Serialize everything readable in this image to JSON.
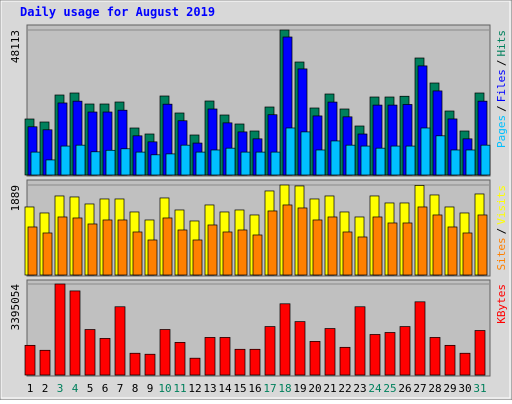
{
  "chart_data": [
    {
      "type": "bar",
      "title": "Daily usage for August 2019",
      "ylim": [
        0,
        48113
      ],
      "yticks": [
        48113
      ],
      "legend_separator": "/",
      "series": [
        {
          "name": "Pages",
          "color": "#00c0ff",
          "values": [
            7600,
            5000,
            9600,
            9900,
            7700,
            8200,
            8700,
            7600,
            6700,
            7000,
            9900,
            7600,
            8300,
            8900,
            7600,
            7600,
            7600,
            15600,
            14300,
            8300,
            11300,
            9900,
            9600,
            8900,
            9600,
            9600,
            15600,
            13000,
            8300,
            8300,
            9900
          ]
        },
        {
          "name": "Files",
          "color": "#0000ff",
          "values": [
            16000,
            15000,
            23900,
            24500,
            20900,
            20900,
            21500,
            13000,
            11000,
            23500,
            18000,
            10600,
            21900,
            17300,
            14300,
            12000,
            20000,
            45790,
            35200,
            19600,
            24200,
            19300,
            13600,
            23200,
            23200,
            23400,
            36200,
            27900,
            18600,
            12000,
            24500
          ]
        },
        {
          "name": "Hits",
          "color": "#00805c",
          "values": [
            18581,
            17585,
            26544,
            27208,
            23558,
            23558,
            24221,
            15595,
            13604,
            26212,
            20572,
            13272,
            24553,
            19908,
            16922,
            14599,
            22562,
            48113,
            37493,
            22231,
            26876,
            21899,
            16258,
            25880,
            25880,
            26134,
            38821,
            30526,
            21235,
            14599,
            27208
          ]
        }
      ]
    },
    {
      "type": "bar",
      "ylim": [
        0,
        1889
      ],
      "yticks": [
        1889
      ],
      "legend_separator": "/",
      "series": [
        {
          "name": "Sites",
          "color": "#ff8000",
          "values": [
            1008,
            882,
            1218,
            1197,
            1071,
            1155,
            1155,
            903,
            735,
            1197,
            945,
            735,
            1050,
            903,
            945,
            840,
            1344,
            1470,
            1407,
            1155,
            1218,
            903,
            798,
            1218,
            1092,
            1092,
            1428,
            1260,
            1008,
            882,
            1260
          ]
        },
        {
          "name": "Visits",
          "color": "#ffff00",
          "values": [
            1428,
            1302,
            1659,
            1638,
            1491,
            1596,
            1596,
            1323,
            1155,
            1617,
            1365,
            1134,
            1470,
            1323,
            1365,
            1260,
            1764,
            1889,
            1869,
            1596,
            1659,
            1323,
            1218,
            1659,
            1512,
            1512,
            1880,
            1680,
            1428,
            1302,
            1701
          ]
        }
      ]
    },
    {
      "type": "bar",
      "ylim": [
        0,
        3395054
      ],
      "yticks": [
        3395054
      ],
      "categories": [
        "1",
        "2",
        "3",
        "4",
        "5",
        "6",
        "7",
        "8",
        "9",
        "10",
        "11",
        "12",
        "13",
        "14",
        "15",
        "16",
        "17",
        "18",
        "19",
        "20",
        "21",
        "22",
        "23",
        "24",
        "25",
        "26",
        "27",
        "28",
        "29",
        "30",
        "31"
      ],
      "category_colors": [
        "#000000",
        "#000000",
        "#00805c",
        "#00805c",
        "#000000",
        "#000000",
        "#000000",
        "#000000",
        "#000000",
        "#00805c",
        "#00805c",
        "#000000",
        "#000000",
        "#000000",
        "#000000",
        "#000000",
        "#00805c",
        "#00805c",
        "#000000",
        "#000000",
        "#000000",
        "#000000",
        "#000000",
        "#00805c",
        "#00805c",
        "#000000",
        "#000000",
        "#000000",
        "#000000",
        "#000000",
        "#00805c"
      ],
      "series": [
        {
          "name": "KBytes",
          "color": "#ff0000",
          "values": [
            1107090,
            922575,
            3395054,
            3136755,
            1697538,
            1365411,
            2546307,
            811866,
            774963,
            1697538,
            1217799,
            627351,
            1402314,
            1402314,
            959478,
            959478,
            1808247,
            2656899,
            1992762,
            1254702,
            1734441,
            1033284,
            2546307,
            1512999,
            1586805,
            1808247,
            2730822,
            1402314,
            1107090,
            811866,
            1660635
          ]
        }
      ]
    }
  ]
}
